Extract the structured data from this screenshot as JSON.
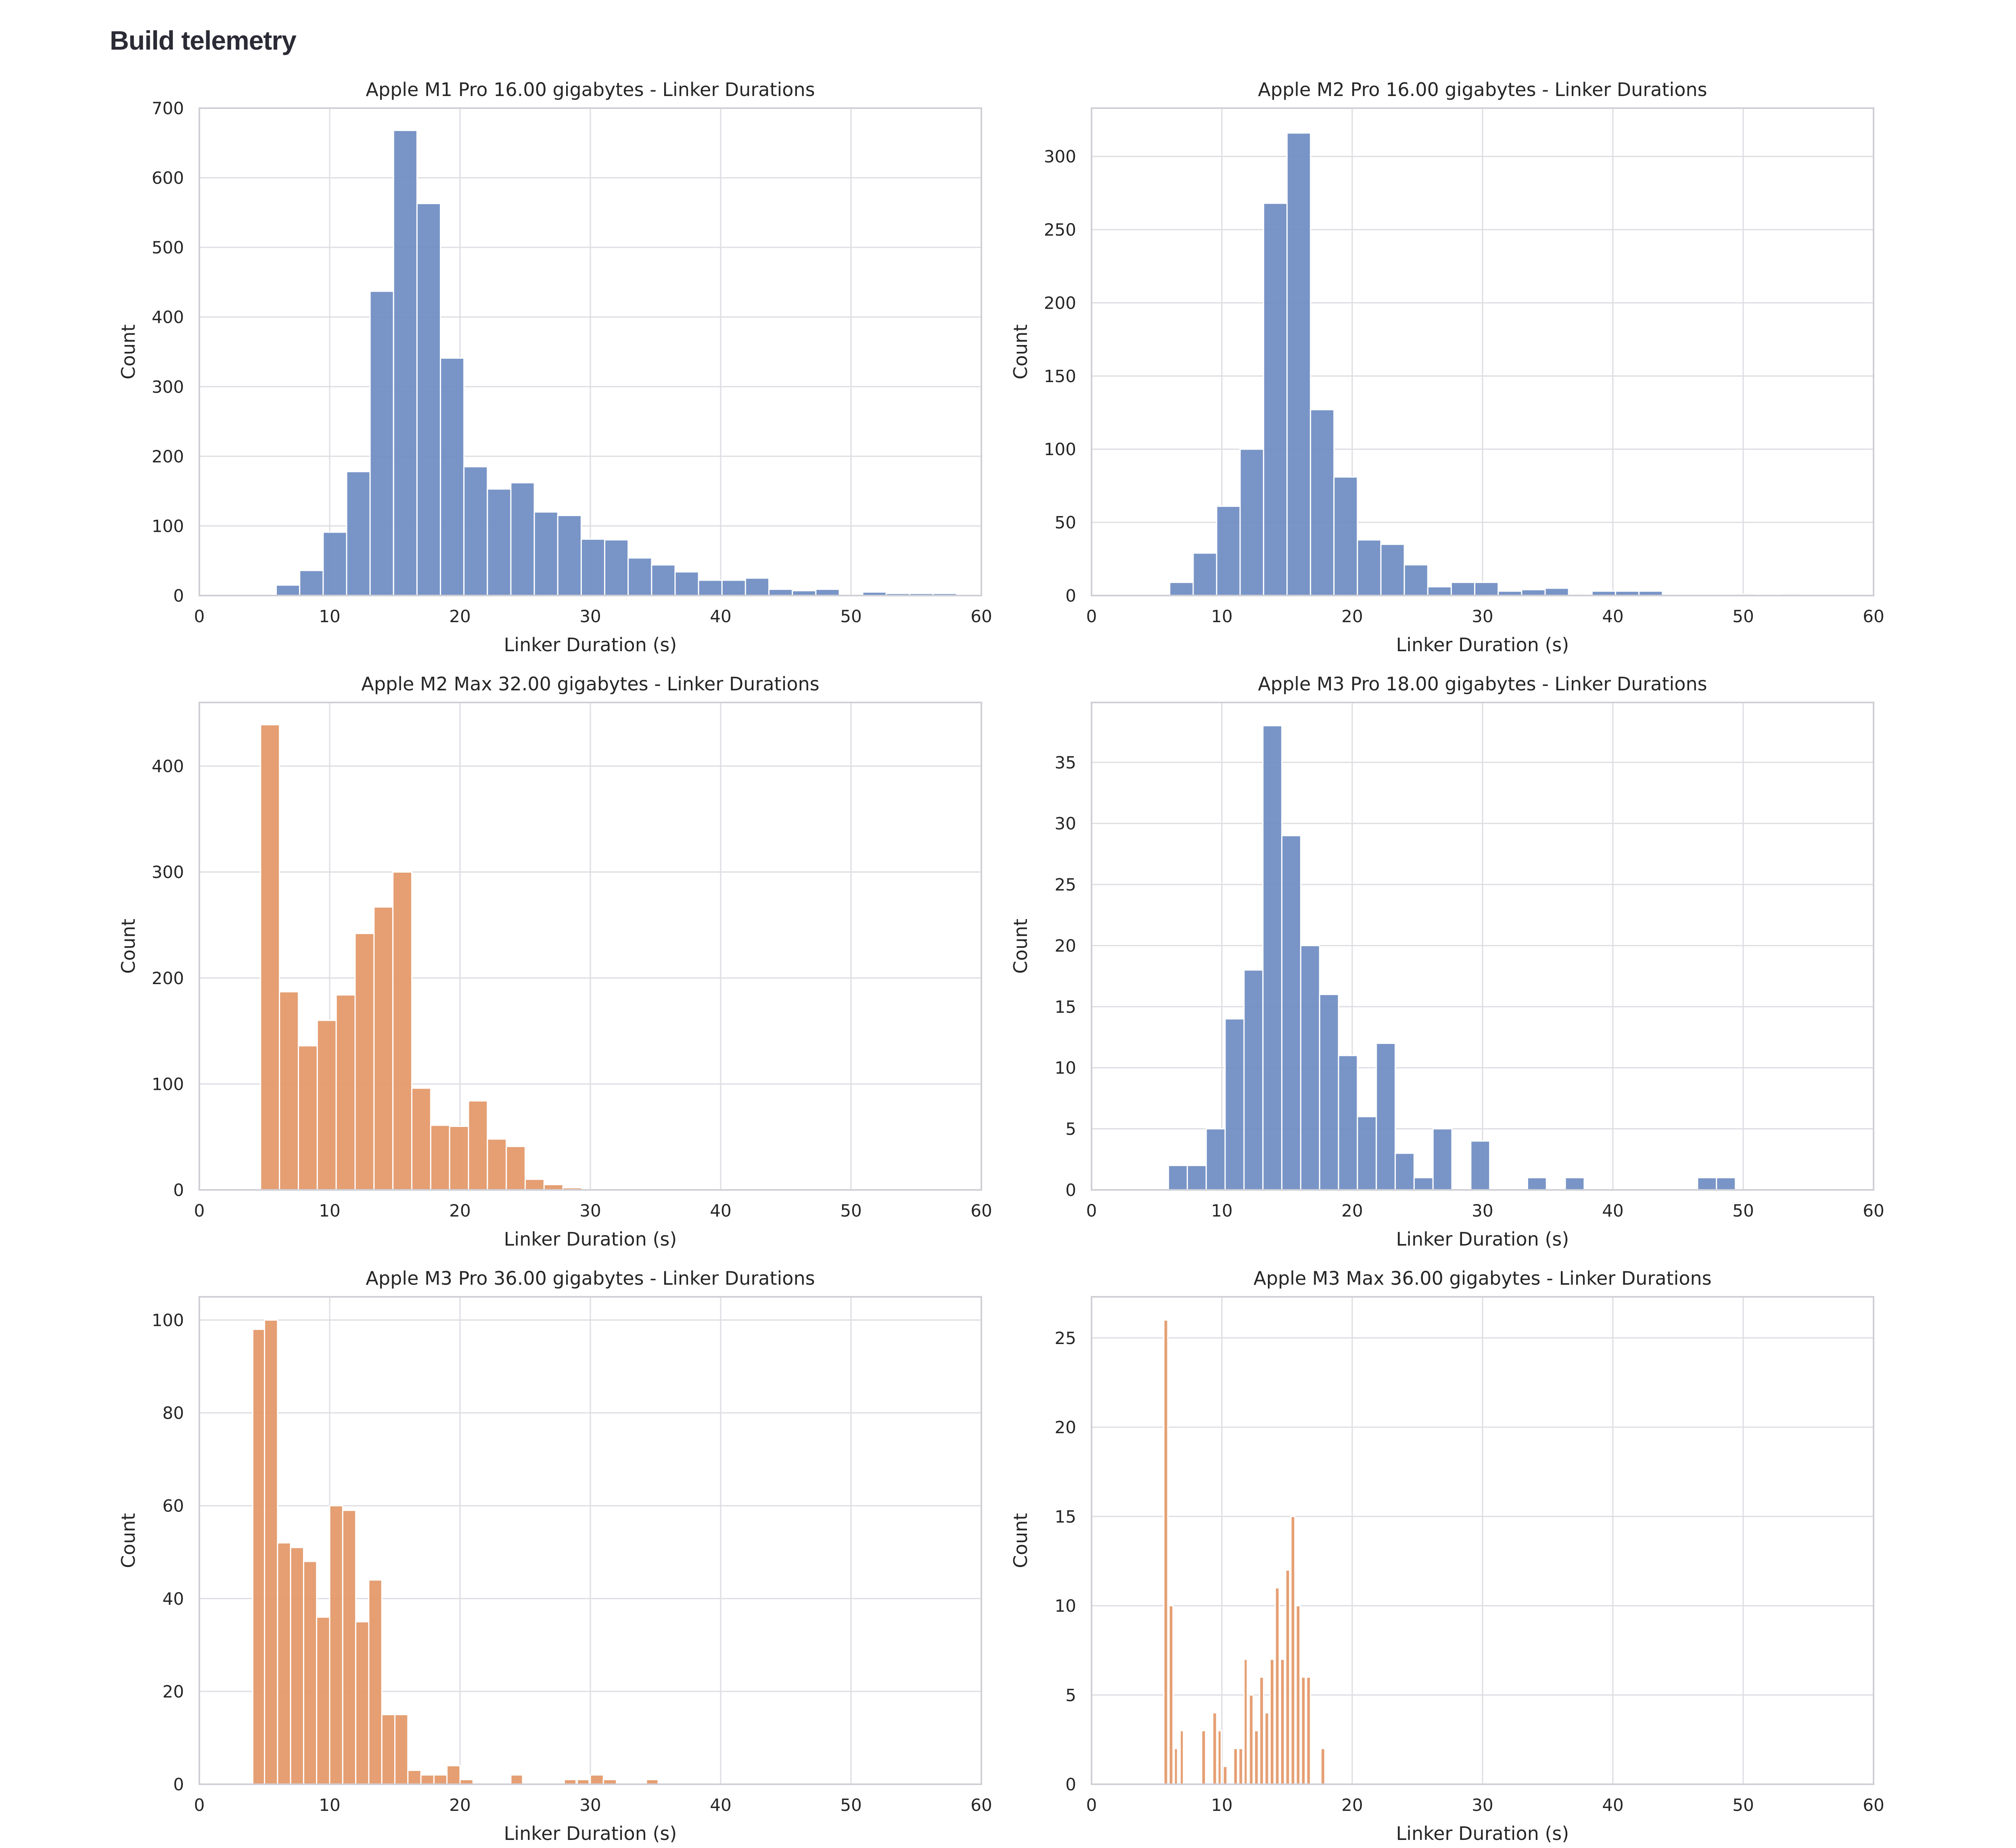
{
  "page": {
    "title": "Build telemetry"
  },
  "colors": {
    "blue": "#6e8cc2",
    "orange": "#e39767",
    "grid": "#dddde3",
    "frame": "#cfcfd6",
    "text": "#262626"
  },
  "chart_data": [
    {
      "type": "bar",
      "title": "Apple M1 Pro 16.00 gigabytes - Linker Durations",
      "xlabel": "Linker Duration (s)",
      "ylabel": "Count",
      "xlim": [
        0,
        60
      ],
      "ylim": [
        0,
        700
      ],
      "xticks": [
        0,
        10,
        20,
        30,
        40,
        50,
        60
      ],
      "yticks": [
        0,
        100,
        200,
        300,
        400,
        500,
        600,
        700
      ],
      "color": "orange_or_blue:blue",
      "series_color": "#6e8cc2",
      "bins": [
        {
          "x0": 5.9,
          "x1": 7.7,
          "count": 15
        },
        {
          "x0": 7.7,
          "x1": 9.5,
          "count": 36
        },
        {
          "x0": 9.5,
          "x1": 11.3,
          "count": 91
        },
        {
          "x0": 11.3,
          "x1": 13.1,
          "count": 178
        },
        {
          "x0": 13.1,
          "x1": 14.9,
          "count": 437
        },
        {
          "x0": 14.9,
          "x1": 16.7,
          "count": 668
        },
        {
          "x0": 16.7,
          "x1": 18.5,
          "count": 563
        },
        {
          "x0": 18.5,
          "x1": 20.3,
          "count": 341
        },
        {
          "x0": 20.3,
          "x1": 22.1,
          "count": 185
        },
        {
          "x0": 22.1,
          "x1": 23.9,
          "count": 153
        },
        {
          "x0": 23.9,
          "x1": 25.7,
          "count": 162
        },
        {
          "x0": 25.7,
          "x1": 27.5,
          "count": 120
        },
        {
          "x0": 27.5,
          "x1": 29.3,
          "count": 115
        },
        {
          "x0": 29.3,
          "x1": 31.1,
          "count": 81
        },
        {
          "x0": 31.1,
          "x1": 32.9,
          "count": 80
        },
        {
          "x0": 32.9,
          "x1": 34.7,
          "count": 54
        },
        {
          "x0": 34.7,
          "x1": 36.5,
          "count": 44
        },
        {
          "x0": 36.5,
          "x1": 38.3,
          "count": 34
        },
        {
          "x0": 38.3,
          "x1": 40.1,
          "count": 22
        },
        {
          "x0": 40.1,
          "x1": 41.9,
          "count": 22
        },
        {
          "x0": 41.9,
          "x1": 43.7,
          "count": 25
        },
        {
          "x0": 43.7,
          "x1": 45.5,
          "count": 9
        },
        {
          "x0": 45.5,
          "x1": 47.3,
          "count": 7
        },
        {
          "x0": 47.3,
          "x1": 49.1,
          "count": 9
        },
        {
          "x0": 49.1,
          "x1": 50.9,
          "count": 0
        },
        {
          "x0": 50.9,
          "x1": 52.7,
          "count": 5
        },
        {
          "x0": 52.7,
          "x1": 54.5,
          "count": 3
        },
        {
          "x0": 54.5,
          "x1": 56.3,
          "count": 3
        },
        {
          "x0": 56.3,
          "x1": 58.1,
          "count": 3
        }
      ]
    },
    {
      "type": "bar",
      "title": "Apple M2 Pro 16.00 gigabytes - Linker Durations",
      "xlabel": "Linker Duration (s)",
      "ylabel": "Count",
      "xlim": [
        0,
        60
      ],
      "ylim": [
        0,
        333
      ],
      "xticks": [
        0,
        10,
        20,
        30,
        40,
        50,
        60
      ],
      "yticks": [
        0,
        50,
        100,
        150,
        200,
        250,
        300
      ],
      "series_color": "#6e8cc2",
      "bins": [
        {
          "x0": 6.0,
          "x1": 7.8,
          "count": 9
        },
        {
          "x0": 7.8,
          "x1": 9.6,
          "count": 29
        },
        {
          "x0": 9.6,
          "x1": 11.4,
          "count": 61
        },
        {
          "x0": 11.4,
          "x1": 13.2,
          "count": 100
        },
        {
          "x0": 13.2,
          "x1": 15.0,
          "count": 268
        },
        {
          "x0": 15.0,
          "x1": 16.8,
          "count": 316
        },
        {
          "x0": 16.8,
          "x1": 18.6,
          "count": 127
        },
        {
          "x0": 18.6,
          "x1": 20.4,
          "count": 81
        },
        {
          "x0": 20.4,
          "x1": 22.2,
          "count": 38
        },
        {
          "x0": 22.2,
          "x1": 24.0,
          "count": 35
        },
        {
          "x0": 24.0,
          "x1": 25.8,
          "count": 21
        },
        {
          "x0": 25.8,
          "x1": 27.6,
          "count": 6
        },
        {
          "x0": 27.6,
          "x1": 29.4,
          "count": 9
        },
        {
          "x0": 29.4,
          "x1": 31.2,
          "count": 9
        },
        {
          "x0": 31.2,
          "x1": 33.0,
          "count": 3
        },
        {
          "x0": 33.0,
          "x1": 34.8,
          "count": 4
        },
        {
          "x0": 34.8,
          "x1": 36.6,
          "count": 5
        },
        {
          "x0": 36.6,
          "x1": 38.4,
          "count": 1
        },
        {
          "x0": 38.4,
          "x1": 40.2,
          "count": 3
        },
        {
          "x0": 40.2,
          "x1": 42.0,
          "count": 3
        },
        {
          "x0": 42.0,
          "x1": 43.8,
          "count": 3
        },
        {
          "x0": 43.8,
          "x1": 45.6,
          "count": 0
        },
        {
          "x0": 45.6,
          "x1": 47.4,
          "count": 0
        },
        {
          "x0": 47.4,
          "x1": 49.2,
          "count": 0
        },
        {
          "x0": 49.2,
          "x1": 51.0,
          "count": 1
        },
        {
          "x0": 51.0,
          "x1": 52.8,
          "count": 0
        },
        {
          "x0": 52.8,
          "x1": 54.6,
          "count": 1
        }
      ]
    },
    {
      "type": "bar",
      "title": "Apple M2 Max 32.00 gigabytes - Linker Durations",
      "xlabel": "Linker Duration (s)",
      "ylabel": "Count",
      "xlim": [
        0,
        60
      ],
      "ylim": [
        0,
        460
      ],
      "xticks": [
        0,
        10,
        20,
        30,
        40,
        50,
        60
      ],
      "yticks": [
        0,
        100,
        200,
        300,
        400
      ],
      "series_color": "#e39767",
      "bins": [
        {
          "x0": 4.7,
          "x1": 6.15,
          "count": 439
        },
        {
          "x0": 6.15,
          "x1": 7.6,
          "count": 187
        },
        {
          "x0": 7.6,
          "x1": 9.05,
          "count": 136
        },
        {
          "x0": 9.05,
          "x1": 10.5,
          "count": 160
        },
        {
          "x0": 10.5,
          "x1": 11.95,
          "count": 184
        },
        {
          "x0": 11.95,
          "x1": 13.4,
          "count": 242
        },
        {
          "x0": 13.4,
          "x1": 14.85,
          "count": 267
        },
        {
          "x0": 14.85,
          "x1": 16.3,
          "count": 300
        },
        {
          "x0": 16.3,
          "x1": 17.75,
          "count": 96
        },
        {
          "x0": 17.75,
          "x1": 19.2,
          "count": 61
        },
        {
          "x0": 19.2,
          "x1": 20.65,
          "count": 60
        },
        {
          "x0": 20.65,
          "x1": 22.1,
          "count": 84
        },
        {
          "x0": 22.1,
          "x1": 23.55,
          "count": 48
        },
        {
          "x0": 23.55,
          "x1": 25.0,
          "count": 41
        },
        {
          "x0": 25.0,
          "x1": 26.45,
          "count": 10
        },
        {
          "x0": 26.45,
          "x1": 27.9,
          "count": 5
        },
        {
          "x0": 27.9,
          "x1": 29.35,
          "count": 2
        }
      ]
    },
    {
      "type": "bar",
      "title": "Apple M3 Pro 18.00 gigabytes - Linker Durations",
      "xlabel": "Linker Duration (s)",
      "ylabel": "Count",
      "xlim": [
        0,
        60
      ],
      "ylim": [
        0,
        39.9
      ],
      "xticks": [
        0,
        10,
        20,
        30,
        40,
        50,
        60
      ],
      "yticks": [
        0,
        5,
        10,
        15,
        20,
        25,
        30,
        35
      ],
      "series_color": "#6e8cc2",
      "bins": [
        {
          "x0": 5.9,
          "x1": 7.35,
          "count": 2
        },
        {
          "x0": 7.35,
          "x1": 8.8,
          "count": 2
        },
        {
          "x0": 8.8,
          "x1": 10.25,
          "count": 5
        },
        {
          "x0": 10.25,
          "x1": 11.7,
          "count": 14
        },
        {
          "x0": 11.7,
          "x1": 13.15,
          "count": 18
        },
        {
          "x0": 13.15,
          "x1": 14.6,
          "count": 38
        },
        {
          "x0": 14.6,
          "x1": 16.05,
          "count": 29
        },
        {
          "x0": 16.05,
          "x1": 17.5,
          "count": 20
        },
        {
          "x0": 17.5,
          "x1": 18.95,
          "count": 16
        },
        {
          "x0": 18.95,
          "x1": 20.4,
          "count": 11
        },
        {
          "x0": 20.4,
          "x1": 21.85,
          "count": 6
        },
        {
          "x0": 21.85,
          "x1": 23.3,
          "count": 12
        },
        {
          "x0": 23.3,
          "x1": 24.75,
          "count": 3
        },
        {
          "x0": 24.75,
          "x1": 26.2,
          "count": 1
        },
        {
          "x0": 26.2,
          "x1": 27.65,
          "count": 5
        },
        {
          "x0": 29.1,
          "x1": 30.55,
          "count": 4
        },
        {
          "x0": 33.45,
          "x1": 34.9,
          "count": 1
        },
        {
          "x0": 36.35,
          "x1": 37.8,
          "count": 1
        },
        {
          "x0": 46.5,
          "x1": 47.95,
          "count": 1
        },
        {
          "x0": 47.95,
          "x1": 49.4,
          "count": 1
        }
      ]
    },
    {
      "type": "bar",
      "title": "Apple M3 Pro 36.00 gigabytes - Linker Durations",
      "xlabel": "Linker Duration (s)",
      "ylabel": "Count",
      "xlim": [
        0,
        60
      ],
      "ylim": [
        0,
        105
      ],
      "xticks": [
        0,
        10,
        20,
        30,
        40,
        50,
        60
      ],
      "yticks": [
        0,
        20,
        40,
        60,
        80,
        100
      ],
      "series_color": "#e39767",
      "bins": [
        {
          "x0": 4.1,
          "x1": 5.0,
          "count": 98
        },
        {
          "x0": 5.0,
          "x1": 6.0,
          "count": 100
        },
        {
          "x0": 6.0,
          "x1": 7.0,
          "count": 52
        },
        {
          "x0": 7.0,
          "x1": 8.0,
          "count": 51
        },
        {
          "x0": 8.0,
          "x1": 9.0,
          "count": 48
        },
        {
          "x0": 9.0,
          "x1": 10.0,
          "count": 36
        },
        {
          "x0": 10.0,
          "x1": 11.0,
          "count": 60
        },
        {
          "x0": 11.0,
          "x1": 12.0,
          "count": 59
        },
        {
          "x0": 12.0,
          "x1": 13.0,
          "count": 35
        },
        {
          "x0": 13.0,
          "x1": 14.0,
          "count": 44
        },
        {
          "x0": 14.0,
          "x1": 15.0,
          "count": 15
        },
        {
          "x0": 15.0,
          "x1": 16.0,
          "count": 15
        },
        {
          "x0": 16.0,
          "x1": 17.0,
          "count": 3
        },
        {
          "x0": 17.0,
          "x1": 18.0,
          "count": 2
        },
        {
          "x0": 18.0,
          "x1": 19.0,
          "count": 2
        },
        {
          "x0": 19.0,
          "x1": 20.0,
          "count": 4
        },
        {
          "x0": 20.0,
          "x1": 21.0,
          "count": 1
        },
        {
          "x0": 23.9,
          "x1": 24.8,
          "count": 2
        },
        {
          "x0": 28.0,
          "x1": 28.9,
          "count": 1
        },
        {
          "x0": 29.0,
          "x1": 29.9,
          "count": 1
        },
        {
          "x0": 30.0,
          "x1": 31.0,
          "count": 2
        },
        {
          "x0": 31.0,
          "x1": 32.0,
          "count": 1
        },
        {
          "x0": 34.3,
          "x1": 35.2,
          "count": 1
        }
      ]
    },
    {
      "type": "bar",
      "title": "Apple M3 Max 36.00 gigabytes - Linker Durations",
      "xlabel": "Linker Duration (s)",
      "ylabel": "Count",
      "xlim": [
        0,
        60
      ],
      "ylim": [
        0,
        27.3
      ],
      "xticks": [
        0,
        10,
        20,
        30,
        40,
        50,
        60
      ],
      "yticks": [
        0,
        5,
        10,
        15,
        20,
        25
      ],
      "series_color": "#e39767",
      "bins": [
        {
          "x0": 5.55,
          "x1": 5.85,
          "count": 26
        },
        {
          "x0": 5.95,
          "x1": 6.25,
          "count": 10
        },
        {
          "x0": 6.35,
          "x1": 6.6,
          "count": 2
        },
        {
          "x0": 6.8,
          "x1": 7.05,
          "count": 3
        },
        {
          "x0": 8.45,
          "x1": 8.75,
          "count": 3
        },
        {
          "x0": 9.3,
          "x1": 9.6,
          "count": 4
        },
        {
          "x0": 9.7,
          "x1": 9.95,
          "count": 3
        },
        {
          "x0": 10.1,
          "x1": 10.4,
          "count": 1
        },
        {
          "x0": 10.9,
          "x1": 11.2,
          "count": 2
        },
        {
          "x0": 11.3,
          "x1": 11.6,
          "count": 2
        },
        {
          "x0": 11.7,
          "x1": 11.95,
          "count": 7
        },
        {
          "x0": 12.1,
          "x1": 12.4,
          "count": 5
        },
        {
          "x0": 12.5,
          "x1": 12.8,
          "count": 3
        },
        {
          "x0": 12.9,
          "x1": 13.2,
          "count": 6
        },
        {
          "x0": 13.3,
          "x1": 13.6,
          "count": 4
        },
        {
          "x0": 13.7,
          "x1": 14.0,
          "count": 7
        },
        {
          "x0": 14.1,
          "x1": 14.4,
          "count": 11
        },
        {
          "x0": 14.5,
          "x1": 14.8,
          "count": 7
        },
        {
          "x0": 14.9,
          "x1": 15.2,
          "count": 12
        },
        {
          "x0": 15.3,
          "x1": 15.6,
          "count": 15
        },
        {
          "x0": 15.7,
          "x1": 16.0,
          "count": 10
        },
        {
          "x0": 16.1,
          "x1": 16.4,
          "count": 6
        },
        {
          "x0": 16.5,
          "x1": 16.8,
          "count": 6
        },
        {
          "x0": 17.6,
          "x1": 17.9,
          "count": 2
        }
      ]
    }
  ]
}
